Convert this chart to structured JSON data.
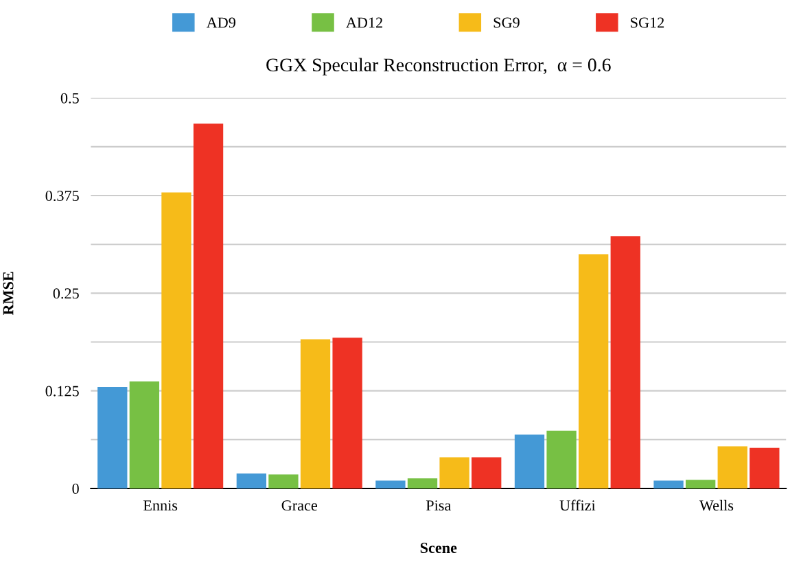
{
  "chart_data": {
    "type": "bar",
    "title": "GGX Specular Reconstruction Error,  α = 0.6",
    "xlabel": "Scene",
    "ylabel": "RMSE",
    "categories": [
      "Ennis",
      "Grace",
      "Pisa",
      "Uffizi",
      "Wells"
    ],
    "series": [
      {
        "name": "AD9",
        "color": "#4499d6",
        "values": [
          0.13,
          0.019,
          0.01,
          0.069,
          0.01
        ]
      },
      {
        "name": "AD12",
        "color": "#77c044",
        "values": [
          0.137,
          0.018,
          0.013,
          0.074,
          0.011
        ]
      },
      {
        "name": "SG9",
        "color": "#f6bb19",
        "values": [
          0.379,
          0.191,
          0.04,
          0.3,
          0.054
        ]
      },
      {
        "name": "SG12",
        "color": "#ee3224",
        "values": [
          0.467,
          0.193,
          0.04,
          0.323,
          0.052
        ]
      }
    ],
    "ylim": [
      0,
      0.5
    ],
    "yticks": [
      0,
      {
        "value": 0.0625,
        "label": null
      },
      0.125,
      {
        "value": 0.1875,
        "label": null
      },
      0.25,
      {
        "value": 0.3125,
        "label": null
      },
      0.375,
      {
        "value": 0.4375,
        "label": null
      },
      0.5
    ],
    "grid": "y",
    "legend": "top"
  }
}
